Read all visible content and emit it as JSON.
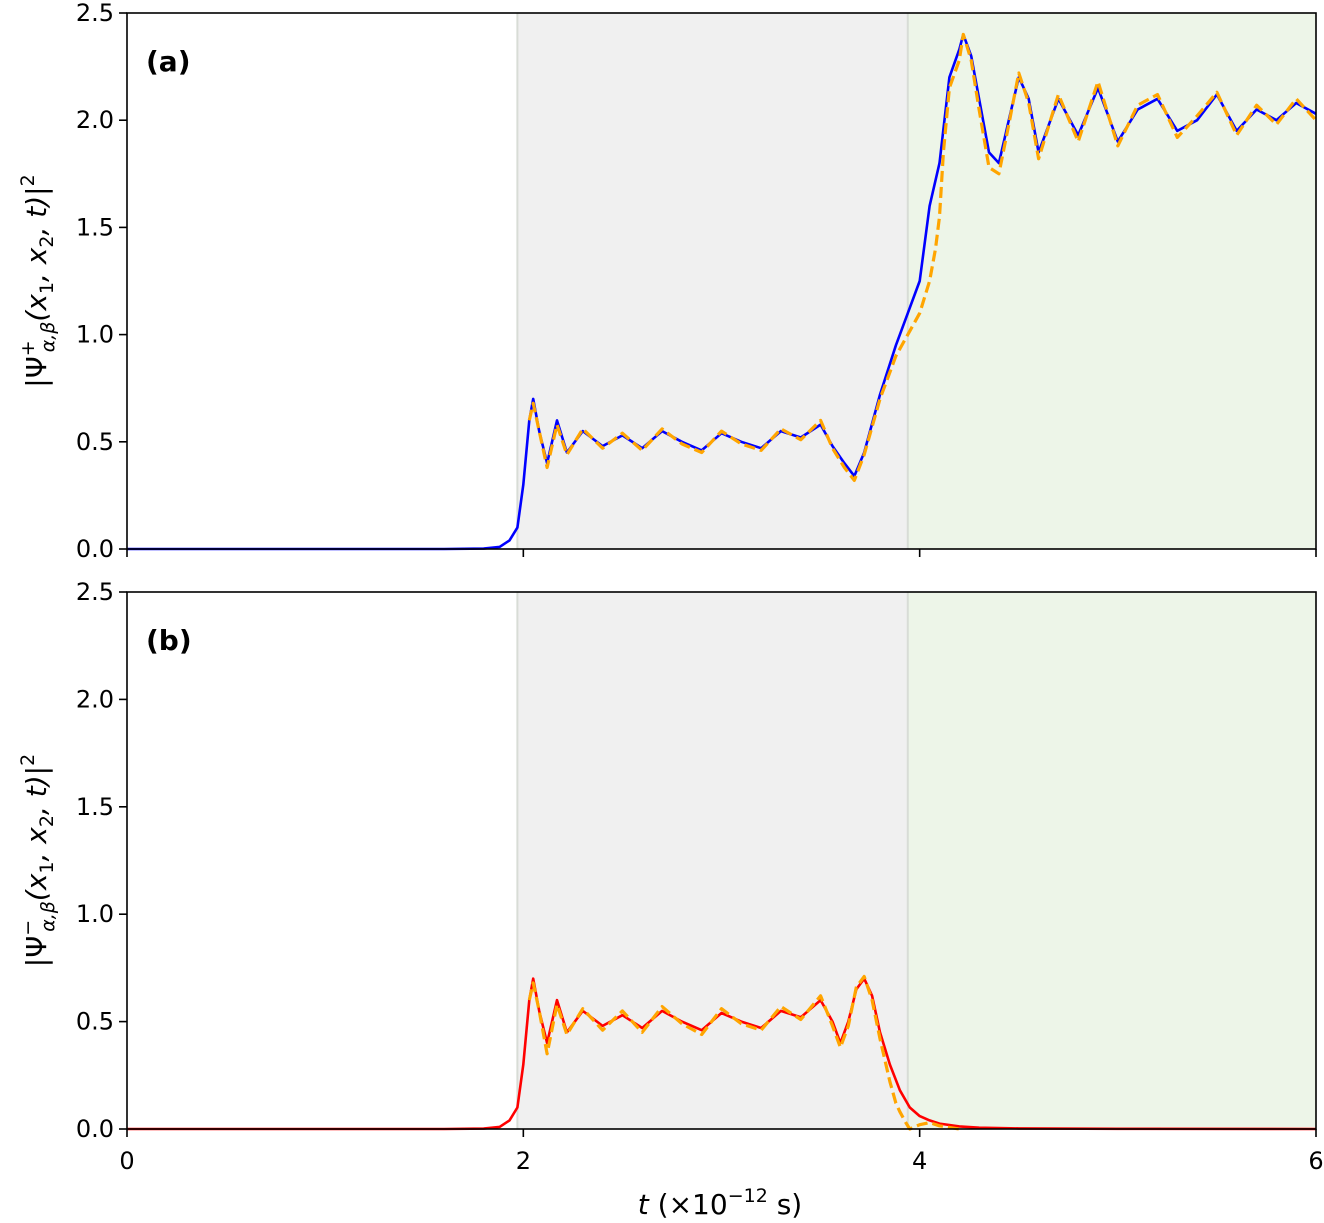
{
  "colors": {
    "plus_solid": "#0000ff",
    "minus_solid": "#ff0000",
    "dashed": "#ffa500",
    "region_middle": "#f0f0f0",
    "region_right": "#edf5e8"
  },
  "chart_data": [
    {
      "type": "line",
      "panel_label": "(a)",
      "ylabel": "|Ψ⁺_{α,β}(x₁, x₂, t)|²",
      "ylabel_parts": {
        "psi": "|Ψ",
        "sup": "+",
        "sub": "α,β",
        "args": "(x",
        "s1": "1",
        "mid": ", x",
        "s2": "2",
        "tail": ", t)|",
        "sq": "2"
      },
      "xlim": [
        0,
        6
      ],
      "ylim": [
        0,
        2.5
      ],
      "x_ticks": [
        "0",
        "2",
        "4",
        "6"
      ],
      "y_ticks": [
        "0.0",
        "0.5",
        "1.0",
        "1.5",
        "2.0",
        "2.5"
      ],
      "x_tick_labels_visible": false,
      "shaded_regions": [
        {
          "from": 1.97,
          "to": 3.94,
          "color": "region_middle"
        },
        {
          "from": 3.94,
          "to": 6.0,
          "color": "region_right"
        }
      ],
      "series": [
        {
          "style": "solid",
          "color": "plus_solid",
          "x": [
            0,
            1.6,
            1.8,
            1.88,
            1.93,
            1.97,
            2.0,
            2.03,
            2.05,
            2.08,
            2.12,
            2.17,
            2.22,
            2.3,
            2.4,
            2.5,
            2.6,
            2.7,
            2.8,
            2.9,
            3.0,
            3.1,
            3.2,
            3.3,
            3.4,
            3.5,
            3.56,
            3.62,
            3.67,
            3.72,
            3.8,
            3.88,
            3.94,
            4.0,
            4.05,
            4.1,
            4.15,
            4.2,
            4.22,
            4.26,
            4.3,
            4.35,
            4.4,
            4.45,
            4.5,
            4.55,
            4.6,
            4.7,
            4.8,
            4.9,
            5.0,
            5.1,
            5.2,
            5.3,
            5.4,
            5.5,
            5.6,
            5.7,
            5.8,
            5.9,
            6.0
          ],
          "y": [
            0,
            0.0,
            0.002,
            0.01,
            0.04,
            0.1,
            0.3,
            0.6,
            0.7,
            0.55,
            0.4,
            0.6,
            0.45,
            0.55,
            0.48,
            0.53,
            0.47,
            0.55,
            0.5,
            0.46,
            0.54,
            0.5,
            0.47,
            0.55,
            0.52,
            0.58,
            0.48,
            0.4,
            0.34,
            0.45,
            0.72,
            0.95,
            1.1,
            1.25,
            1.6,
            1.8,
            2.2,
            2.33,
            2.4,
            2.3,
            2.1,
            1.85,
            1.8,
            2.0,
            2.2,
            2.1,
            1.85,
            2.1,
            1.93,
            2.15,
            1.9,
            2.05,
            2.1,
            1.95,
            2.0,
            2.12,
            1.95,
            2.05,
            2.0,
            2.08,
            2.03
          ]
        },
        {
          "style": "dashed",
          "color": "dashed",
          "x": [
            2.03,
            2.05,
            2.08,
            2.12,
            2.17,
            2.22,
            2.3,
            2.4,
            2.5,
            2.6,
            2.7,
            2.8,
            2.9,
            3.0,
            3.1,
            3.2,
            3.3,
            3.4,
            3.5,
            3.56,
            3.62,
            3.67,
            3.72,
            3.8,
            3.88,
            3.94,
            4.0,
            4.05,
            4.08,
            4.1,
            4.12,
            4.15,
            4.2,
            4.22,
            4.26,
            4.3,
            4.35,
            4.4,
            4.45,
            4.5,
            4.55,
            4.6,
            4.7,
            4.8,
            4.9,
            5.0,
            5.1,
            5.2,
            5.3,
            5.4,
            5.5,
            5.6,
            5.7,
            5.8,
            5.9,
            6.0
          ],
          "y": [
            0.6,
            0.68,
            0.55,
            0.38,
            0.58,
            0.44,
            0.56,
            0.47,
            0.54,
            0.46,
            0.56,
            0.49,
            0.45,
            0.55,
            0.49,
            0.46,
            0.56,
            0.51,
            0.6,
            0.47,
            0.38,
            0.32,
            0.44,
            0.7,
            0.9,
            1.0,
            1.1,
            1.25,
            1.4,
            1.55,
            1.85,
            2.15,
            2.28,
            2.4,
            2.28,
            2.05,
            1.78,
            1.75,
            1.98,
            2.22,
            2.08,
            1.82,
            2.12,
            1.9,
            2.18,
            1.88,
            2.07,
            2.12,
            1.92,
            2.02,
            2.13,
            1.93,
            2.07,
            1.98,
            2.1,
            2.0
          ]
        }
      ]
    },
    {
      "type": "line",
      "panel_label": "(b)",
      "xlabel": "t (×10⁻¹² s)",
      "xlabel_parts": {
        "t": "t",
        "pre": " (×10",
        "exp": "−12",
        "post": " s)"
      },
      "ylabel": "|Ψ⁻_{α,β}(x₁, x₂, t)|²",
      "ylabel_parts": {
        "psi": "|Ψ",
        "sup": "−",
        "sub": "α,β",
        "args": "(x",
        "s1": "1",
        "mid": ", x",
        "s2": "2",
        "tail": ", t)|",
        "sq": "2"
      },
      "xlim": [
        0,
        6
      ],
      "ylim": [
        0,
        2.5
      ],
      "x_ticks": [
        "0",
        "2",
        "4",
        "6"
      ],
      "y_ticks": [
        "0.0",
        "0.5",
        "1.0",
        "1.5",
        "2.0",
        "2.5"
      ],
      "x_tick_labels_visible": true,
      "shaded_regions": [
        {
          "from": 1.97,
          "to": 3.94,
          "color": "region_middle"
        },
        {
          "from": 3.94,
          "to": 6.0,
          "color": "region_right"
        }
      ],
      "series": [
        {
          "style": "solid",
          "color": "minus_solid",
          "x": [
            0,
            1.6,
            1.8,
            1.88,
            1.93,
            1.97,
            2.0,
            2.03,
            2.05,
            2.08,
            2.12,
            2.17,
            2.22,
            2.3,
            2.4,
            2.5,
            2.6,
            2.7,
            2.8,
            2.9,
            3.0,
            3.1,
            3.2,
            3.3,
            3.4,
            3.5,
            3.56,
            3.6,
            3.64,
            3.68,
            3.72,
            3.76,
            3.8,
            3.85,
            3.9,
            3.95,
            4.0,
            4.05,
            4.1,
            4.2,
            4.3,
            4.5,
            5.0,
            6.0
          ],
          "y": [
            0,
            0.0,
            0.002,
            0.01,
            0.04,
            0.1,
            0.3,
            0.6,
            0.7,
            0.55,
            0.4,
            0.6,
            0.45,
            0.55,
            0.48,
            0.53,
            0.47,
            0.55,
            0.5,
            0.46,
            0.54,
            0.5,
            0.47,
            0.55,
            0.52,
            0.6,
            0.5,
            0.4,
            0.5,
            0.65,
            0.7,
            0.62,
            0.45,
            0.3,
            0.18,
            0.1,
            0.06,
            0.04,
            0.025,
            0.012,
            0.006,
            0.003,
            0.001,
            0.0
          ]
        },
        {
          "style": "dashed",
          "color": "dashed",
          "x": [
            2.03,
            2.05,
            2.08,
            2.12,
            2.17,
            2.22,
            2.3,
            2.4,
            2.5,
            2.6,
            2.7,
            2.8,
            2.9,
            3.0,
            3.1,
            3.2,
            3.3,
            3.4,
            3.5,
            3.56,
            3.6,
            3.64,
            3.68,
            3.72,
            3.76,
            3.8,
            3.85,
            3.88,
            3.9,
            3.93,
            3.95,
            4.0,
            4.05,
            4.1,
            4.2
          ],
          "y": [
            0.6,
            0.68,
            0.55,
            0.35,
            0.58,
            0.44,
            0.56,
            0.46,
            0.55,
            0.45,
            0.57,
            0.49,
            0.44,
            0.56,
            0.49,
            0.46,
            0.57,
            0.51,
            0.62,
            0.48,
            0.38,
            0.48,
            0.66,
            0.71,
            0.6,
            0.42,
            0.22,
            0.12,
            0.08,
            0.03,
            0.0,
            0.02,
            0.03,
            0.015,
            0.0
          ]
        }
      ]
    }
  ]
}
